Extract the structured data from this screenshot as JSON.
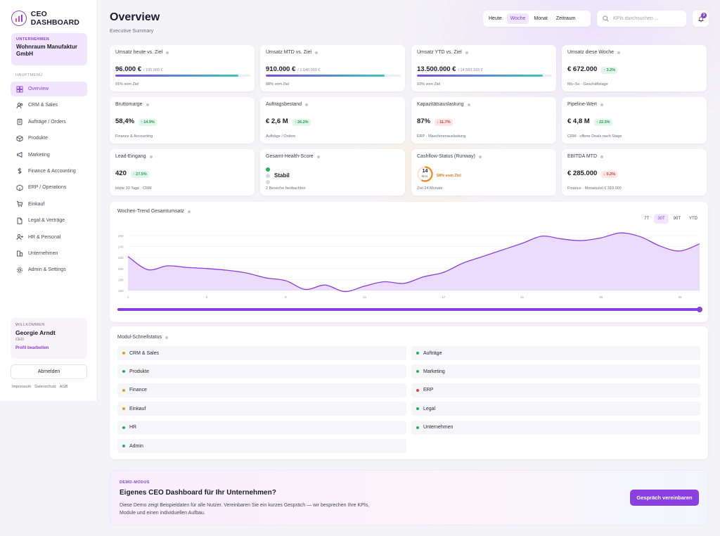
{
  "brand": {
    "name": "CEO DASHBOARD",
    "accent": "#8a3fe0"
  },
  "company": {
    "label": "UNTERNEHMEN",
    "name": "Wohnraum Manufaktur GmbH"
  },
  "nav": {
    "heading": "HAUPTMENÜ",
    "items": [
      {
        "label": "Overview",
        "icon": "grid-icon",
        "active": true
      },
      {
        "label": "CRM & Sales",
        "icon": "users-icon"
      },
      {
        "label": "Aufträge / Orders",
        "icon": "clipboard-icon"
      },
      {
        "label": "Produkte",
        "icon": "box-icon"
      },
      {
        "label": "Marketing",
        "icon": "megaphone-icon"
      },
      {
        "label": "Finance & Accounting",
        "icon": "dollar-icon"
      },
      {
        "label": "ERP / Operations",
        "icon": "cube-icon"
      },
      {
        "label": "Einkauf",
        "icon": "cart-icon"
      },
      {
        "label": "Legal & Verträge",
        "icon": "file-icon"
      },
      {
        "label": "HR & Personal",
        "icon": "user-plus-icon"
      },
      {
        "label": "Unternehmen",
        "icon": "building-icon"
      },
      {
        "label": "Admin & Settings",
        "icon": "gear-icon"
      }
    ]
  },
  "welcome": {
    "label": "WILLKOMMEN",
    "name": "Georgie Arndt",
    "role": "CEO",
    "edit": "Profil bearbeiten"
  },
  "logout": "Abmelden",
  "legal": [
    "Impressum",
    "Datenschutz",
    "AGB"
  ],
  "header": {
    "title": "Overview",
    "subtitle": "Executive Summary",
    "periods": [
      "Heute",
      "Woche",
      "Monat",
      "Zeitraum"
    ],
    "active_period": "Woche",
    "search_placeholder": "KPIs durchsuchen ...",
    "notifications": "3"
  },
  "kpis": [
    {
      "label": "Umsatz heute vs. Ziel",
      "value": "96.000 €",
      "target": "/ 105.000 €",
      "progress": 0.91,
      "note": "91% vom Ziel"
    },
    {
      "label": "Umsatz MTD vs. Ziel",
      "value": "910.000 €",
      "target": "/ 1.040.000 €",
      "progress": 0.88,
      "note": "88% vom Ziel"
    },
    {
      "label": "Umsatz YTD vs. Ziel",
      "value": "13.500.000 €",
      "target": "/ 14.583.333 €",
      "progress": 0.93,
      "note": "93% vom Ziel"
    },
    {
      "label": "Umsatz diese Woche",
      "value": "€ 672.000",
      "change": "↑ 3.2%",
      "trend": "up",
      "note": "Mo–So · Geschäftstage"
    },
    {
      "label": "Bruttomarge",
      "value": "58,4%",
      "change": "↑ 14.9%",
      "trend": "up",
      "note": "Finance & Accounting"
    },
    {
      "label": "Auftragsbestand",
      "value": "€ 2,6 M",
      "change": "↑ 26.2%",
      "trend": "up",
      "note": "Aufträge / Orders"
    },
    {
      "label": "Kapazitätsauslastung",
      "value": "87%",
      "change": "↓ 11.7%",
      "trend": "down",
      "note": "ERP · Maschinenauslastung"
    },
    {
      "label": "Pipeline-Wert",
      "value": "€ 4,8 M",
      "change": "↑ 22.3%",
      "trend": "up",
      "note": "CRM · offene Deals nach Stage"
    },
    {
      "label": "Lead-Eingang",
      "value": "420",
      "change": "↑ 27.5%",
      "trend": "up",
      "note": "letzte 30 Tage · CRM"
    },
    {
      "label": "Gesamt-Health-Score",
      "status": "Stabil",
      "note": "2 Bereiche beobachten",
      "dots": [
        "#1fb257",
        "#d9d7df",
        "#d9d7df"
      ]
    },
    {
      "label": "Cashflow-Status (Runway)",
      "ring_value": "14",
      "ring_unit": "Mon.",
      "ring_progress": 0.58,
      "ring_note": "58% vom Ziel",
      "note": "Ziel 24 Monate"
    },
    {
      "label": "EBITDA MTD",
      "value": "€ 285.000",
      "change": "↓ 0.2%",
      "trend": "down",
      "note": "Finance · Monatsziel € 310.000"
    }
  ],
  "chart_data": {
    "type": "area",
    "title": "Wochen-Trend Gesamtumsatz",
    "ranges": [
      "7T",
      "30T",
      "90T",
      "YTD"
    ],
    "active_range": "30T",
    "x": [
      1,
      2,
      3,
      4,
      5,
      6,
      7,
      8,
      9,
      10,
      11,
      12,
      13,
      14,
      15,
      16,
      17,
      18,
      19,
      20,
      21,
      22,
      23,
      24,
      25,
      26,
      27,
      28,
      29,
      30
    ],
    "y": [
      222,
      198,
      205,
      202,
      200,
      197,
      192,
      183,
      178,
      162,
      170,
      158,
      168,
      176,
      173,
      185,
      193,
      210,
      222,
      234,
      246,
      259,
      254,
      251,
      256,
      265,
      258,
      241,
      232,
      245
    ],
    "y_ticks": [
      "260",
      "240",
      "220",
      "200",
      "180",
      "160"
    ],
    "x_ticks": [
      "1",
      "5",
      "9",
      "13",
      "17",
      "21",
      "25",
      "29"
    ],
    "ylim": [
      160,
      260
    ],
    "color": "#8a3fe0"
  },
  "modules": {
    "title": "Modul-Schnellstatus",
    "left": [
      {
        "name": "CRM & Sales",
        "color": "#e89a2c"
      },
      {
        "name": "Produkte",
        "color": "#1fb257"
      },
      {
        "name": "Finance",
        "color": "#e89a2c"
      },
      {
        "name": "Einkauf",
        "color": "#e89a2c"
      },
      {
        "name": "HR",
        "color": "#1fb257"
      },
      {
        "name": "Admin",
        "color": "#1fb257"
      }
    ],
    "right": [
      {
        "name": "Aufträge",
        "color": "#1fb257"
      },
      {
        "name": "Marketing",
        "color": "#1fb257"
      },
      {
        "name": "ERP",
        "color": "#e0413a"
      },
      {
        "name": "Legal",
        "color": "#1fb257"
      },
      {
        "name": "Unternehmen",
        "color": "#1fb257"
      }
    ]
  },
  "demo": {
    "label": "DEMO-MODUS",
    "title": "Eigenes CEO Dashboard für Ihr Unternehmen?",
    "text": "Diese Demo zeigt Beispieldaten für alle Nutzer. Vereinbaren Sie ein kurzes Gespräch — wir besprechen Ihre KPIs, Module und einen individuellen Aufbau.",
    "button": "Gespräch vereinbaren"
  }
}
